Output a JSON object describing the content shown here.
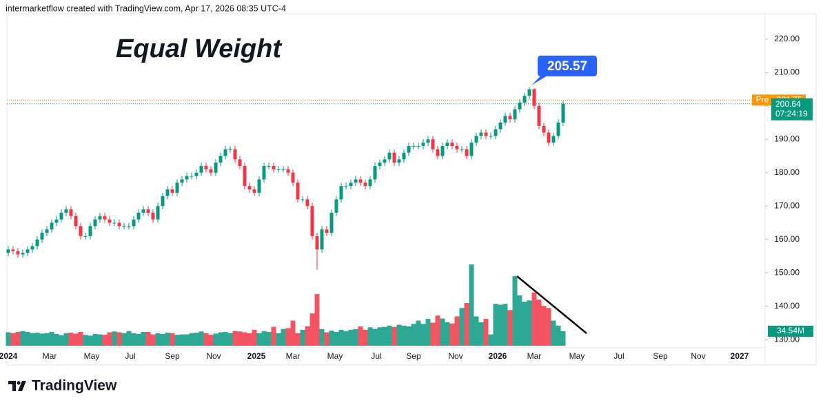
{
  "chart_data": {
    "type": "candlestick",
    "header": "intermarketflow created with TradingView.com, Apr 17, 2026 08:35 UTC-4",
    "title": "Equal Weight",
    "brand": "TradingView",
    "up_color": "#089981",
    "down_color": "#f23645",
    "ylim": [
      122.4,
      227.6
    ],
    "yticks": [
      {
        "value": 130,
        "label": "130.00"
      },
      {
        "value": 140,
        "label": "140.00"
      },
      {
        "value": 150,
        "label": "150.00"
      },
      {
        "value": 160,
        "label": "160.00"
      },
      {
        "value": 170,
        "label": "170.00"
      },
      {
        "value": 180,
        "label": "180.00"
      },
      {
        "value": 190,
        "label": "190.00"
      },
      {
        "value": 200,
        "label": "200.00"
      },
      {
        "value": 210,
        "label": "210.00"
      },
      {
        "value": 220,
        "label": "220.00"
      }
    ],
    "xtick_labels": [
      "2024",
      "Mar",
      "May",
      "Jul",
      "Sep",
      "Nov",
      "2025",
      "Mar",
      "May",
      "Jul",
      "Sep",
      "Nov",
      "2026",
      "Mar",
      "May",
      "Jul",
      "Sep",
      "Nov",
      "2027"
    ],
    "open": [
      156,
      157,
      156.5,
      155.5,
      156,
      157,
      158,
      160,
      162,
      163,
      165,
      166,
      168,
      169,
      167,
      164,
      161,
      161,
      164,
      166,
      167,
      166,
      165,
      165,
      164,
      164,
      164,
      166,
      168,
      169,
      168,
      166,
      170,
      173,
      175,
      174,
      177,
      178,
      179,
      179,
      180,
      182,
      181,
      180,
      183,
      185,
      187,
      187,
      184,
      182,
      176,
      175,
      174,
      178,
      182,
      182,
      181,
      181,
      181,
      180,
      177,
      172,
      172,
      170,
      161,
      157,
      163,
      162,
      168,
      172,
      176,
      176,
      177,
      178,
      177,
      176,
      178,
      182,
      183,
      184,
      186,
      183,
      184,
      186,
      188,
      188,
      188,
      189,
      190,
      187,
      185,
      188,
      189,
      188,
      187,
      187,
      185,
      189,
      191,
      192,
      191,
      191,
      193,
      195,
      197,
      196,
      199,
      201,
      203,
      205,
      200,
      194,
      192,
      189,
      191,
      195
    ],
    "high": [
      158,
      158,
      157.5,
      157,
      158,
      159,
      161,
      163,
      164,
      166,
      167,
      169,
      170,
      170,
      168,
      165,
      162,
      165,
      167,
      168,
      168,
      167,
      166,
      166,
      165,
      165,
      167,
      169,
      170,
      170,
      169,
      171,
      174,
      176,
      176,
      178,
      179,
      180,
      180,
      181,
      183,
      183,
      182,
      184,
      186,
      188,
      188,
      188,
      185,
      183,
      177,
      176,
      179,
      183,
      183,
      183,
      182,
      182,
      182,
      181,
      178,
      173,
      173,
      171,
      162,
      164,
      164,
      169,
      173,
      177,
      177,
      178,
      179,
      179,
      178,
      179,
      183,
      184,
      185,
      187,
      187,
      185,
      187,
      189,
      189,
      189,
      190,
      191,
      191,
      188,
      189,
      190,
      190,
      189,
      188,
      188,
      190,
      192,
      193,
      193,
      192,
      194,
      196,
      198,
      198,
      200,
      202,
      204,
      205.57,
      205.3,
      201,
      195,
      193,
      192,
      196,
      201.5
    ],
    "low": [
      155,
      155.5,
      154.5,
      154.5,
      155,
      156,
      157,
      159,
      161,
      162,
      164,
      165,
      167,
      166,
      163,
      160,
      160,
      160,
      163,
      165,
      165,
      164,
      164,
      163,
      163,
      163,
      163,
      165,
      167,
      167,
      165,
      165,
      169,
      172,
      173,
      173,
      176,
      177,
      178,
      178,
      179,
      180,
      179,
      179,
      182,
      184,
      186,
      183,
      181,
      175,
      174,
      173,
      173,
      177,
      181,
      180,
      180,
      180,
      179,
      176,
      171,
      171,
      169,
      160,
      151,
      156,
      161,
      161,
      167,
      171,
      175,
      175,
      176,
      176,
      175,
      175,
      177,
      181,
      182,
      183,
      182,
      182,
      183,
      185,
      187,
      187,
      187,
      188,
      186,
      184,
      184,
      187,
      187,
      186,
      186,
      184,
      184,
      188,
      190,
      190,
      190,
      190,
      192,
      194,
      195,
      195,
      198,
      200,
      202,
      199,
      193,
      191,
      188,
      188,
      190,
      194
    ],
    "close": [
      157,
      156.5,
      155.5,
      156,
      157,
      158,
      160,
      162,
      163,
      165,
      166,
      168,
      169,
      167,
      164,
      161,
      161,
      164,
      166,
      167,
      166,
      165,
      165,
      164,
      164,
      164,
      166,
      168,
      169,
      168,
      166,
      170,
      173,
      175,
      174,
      177,
      178,
      179,
      179,
      180,
      182,
      181,
      180,
      183,
      185,
      187,
      187,
      184,
      182,
      176,
      175,
      174,
      178,
      182,
      182,
      181,
      181,
      181,
      180,
      177,
      172,
      172,
      170,
      161,
      157,
      163,
      162,
      168,
      172,
      176,
      176,
      177,
      178,
      177,
      176,
      178,
      182,
      183,
      184,
      186,
      183,
      184,
      186,
      188,
      188,
      188,
      189,
      190,
      187,
      185,
      188,
      189,
      188,
      187,
      187,
      185,
      189,
      191,
      192,
      191,
      191,
      193,
      195,
      197,
      196,
      199,
      201,
      203,
      205,
      200,
      194,
      192,
      189,
      191,
      195,
      200.64
    ],
    "volume": [
      32,
      30,
      33,
      35,
      33,
      30,
      31,
      29,
      30,
      33,
      28,
      25,
      30,
      31,
      29,
      33,
      26,
      24,
      28,
      27,
      26,
      32,
      34,
      32,
      30,
      35,
      30,
      28,
      33,
      33,
      27,
      30,
      28,
      31,
      30,
      26,
      27,
      27,
      30,
      31,
      34,
      30,
      26,
      29,
      32,
      33,
      30,
      35,
      34,
      32,
      30,
      38,
      30,
      35,
      33,
      45,
      30,
      40,
      42,
      60,
      30,
      38,
      46,
      77,
      123,
      40,
      32,
      36,
      33,
      38,
      35,
      38,
      40,
      46,
      38,
      44,
      40,
      44,
      45,
      48,
      45,
      50,
      48,
      46,
      52,
      60,
      52,
      64,
      55,
      72,
      65,
      56,
      53,
      70,
      90,
      102,
      194,
      70,
      56,
      64,
      27,
      100,
      98,
      100,
      85,
      166,
      120,
      105,
      108,
      127,
      110,
      95,
      90,
      60,
      48,
      34.54
    ],
    "volume_label": "34.54M",
    "pre_market": {
      "label": "Pre",
      "value": 201.75
    },
    "countdown": "07:24:19"
  }
}
